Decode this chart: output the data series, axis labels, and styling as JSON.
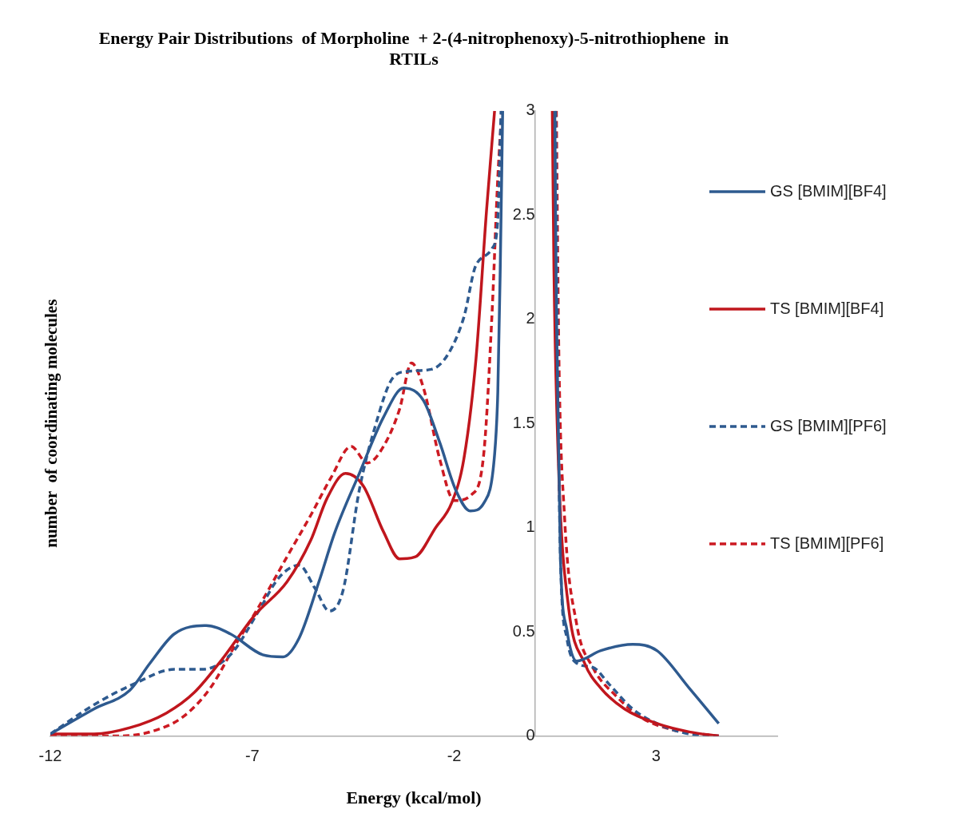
{
  "chart_data": {
    "type": "line",
    "title": "Energy Pair Distributions  of Morpholine  + 2-(4-nitrophenoxy)-5-nitrothiophene  in RTILs",
    "xlabel": "Energy (kcal/mol)",
    "ylabel": "number  of coordinating molecules",
    "xlim": [
      -12,
      6
    ],
    "xticks": [
      -12,
      -7,
      -2,
      3
    ],
    "ylim": [
      0,
      3
    ],
    "yticks": [
      0,
      0.5,
      1,
      1.5,
      2,
      2.5,
      3
    ],
    "grid": false,
    "legend": "right",
    "marker": "none",
    "series": [
      {
        "name": "GS [BMIM][BF4]",
        "color": "#2e5a8f",
        "line_style": "solid",
        "x": [
          -12,
          -10.92,
          -10.03,
          -9.53,
          -8.93,
          -8.14,
          -7.54,
          -6.74,
          -6.24,
          -5.84,
          -5.35,
          -4.95,
          -4.35,
          -3.75,
          -3.25,
          -2.76,
          -2.36,
          -1.96,
          -1.6,
          -1.26,
          -1.0,
          -0.92,
          -0.86,
          -0.8,
          0,
          0.49,
          0.53,
          0.63,
          0.79,
          1.03,
          1.63,
          2.42,
          3.02,
          3.82,
          4.55
        ],
        "values": [
          0.01,
          0.13,
          0.22,
          0.35,
          0.49,
          0.53,
          0.49,
          0.39,
          0.38,
          0.47,
          0.74,
          0.98,
          1.26,
          1.53,
          1.67,
          1.61,
          1.41,
          1.18,
          1.08,
          1.12,
          1.35,
          1.65,
          2.24,
          3,
          null,
          3,
          2.04,
          0.86,
          0.51,
          0.36,
          0.41,
          0.44,
          0.41,
          0.23,
          0.06
        ]
      },
      {
        "name": "TS [BMIM][BF4]",
        "color": "#c0161d",
        "line_style": "solid",
        "x": [
          -12,
          -10.92,
          -10.03,
          -9.13,
          -8.43,
          -7.74,
          -6.94,
          -6.14,
          -5.55,
          -5.15,
          -4.69,
          -4.25,
          -3.75,
          -3.35,
          -2.96,
          -2.46,
          -2.06,
          -1.76,
          -1.46,
          -1.2,
          -1.0,
          0,
          0.43,
          0.47,
          0.59,
          0.83,
          1.23,
          1.63,
          2.22,
          3.02,
          3.82,
          4.55
        ],
        "values": [
          0.01,
          0.01,
          0.04,
          0.11,
          0.21,
          0.37,
          0.58,
          0.74,
          0.94,
          1.14,
          1.26,
          1.2,
          0.98,
          0.85,
          0.86,
          1.0,
          1.12,
          1.33,
          1.81,
          2.52,
          3,
          null,
          3,
          2.24,
          1.26,
          0.62,
          0.35,
          0.23,
          0.13,
          0.06,
          0.02,
          0
        ]
      },
      {
        "name": "GS [BMIM][PF6]",
        "color": "#2e5a8f",
        "line_style": "dashed",
        "x": [
          -12,
          -10.92,
          -9.93,
          -8.93,
          -8.24,
          -7.54,
          -6.84,
          -6.34,
          -5.84,
          -5.45,
          -5.09,
          -4.75,
          -4.35,
          -3.95,
          -3.55,
          -3.16,
          -2.56,
          -2.16,
          -1.76,
          -1.46,
          -1.06,
          -0.92,
          -0.84,
          0,
          0.51,
          0.55,
          0.63,
          0.79,
          1.03,
          1.43,
          1.83,
          2.42,
          3.02,
          3.82,
          4.55
        ],
        "values": [
          0.01,
          0.15,
          0.25,
          0.32,
          0.32,
          0.39,
          0.6,
          0.76,
          0.82,
          0.71,
          0.6,
          0.7,
          1.18,
          1.49,
          1.71,
          1.75,
          1.76,
          1.83,
          2.01,
          2.26,
          2.34,
          2.48,
          3,
          null,
          3,
          2.04,
          0.86,
          0.47,
          0.35,
          0.33,
          0.25,
          0.13,
          0.06,
          0.01,
          0
        ]
      },
      {
        "name": "TS [BMIM][PF6]",
        "color": "#cc1a22",
        "line_style": "dashed",
        "x": [
          -12,
          -10.33,
          -9.53,
          -8.73,
          -8.04,
          -7.44,
          -6.84,
          -6.14,
          -5.55,
          -5.05,
          -4.55,
          -4.15,
          -3.75,
          -3.35,
          -3.06,
          -2.76,
          -2.36,
          -2.0,
          -1.56,
          -1.26,
          -1.06,
          -0.92,
          -0.82,
          0,
          0.53,
          0.59,
          0.73,
          1.03,
          1.43,
          2.02,
          2.62,
          3.41,
          4.55
        ],
        "values": [
          0,
          0,
          0.02,
          0.09,
          0.23,
          0.43,
          0.62,
          0.86,
          1.06,
          1.24,
          1.39,
          1.31,
          1.39,
          1.57,
          1.79,
          1.67,
          1.33,
          1.13,
          1.16,
          1.37,
          2.04,
          2.68,
          3,
          null,
          3,
          1.85,
          1.06,
          0.54,
          0.33,
          0.19,
          0.09,
          0.03,
          0
        ]
      }
    ]
  }
}
